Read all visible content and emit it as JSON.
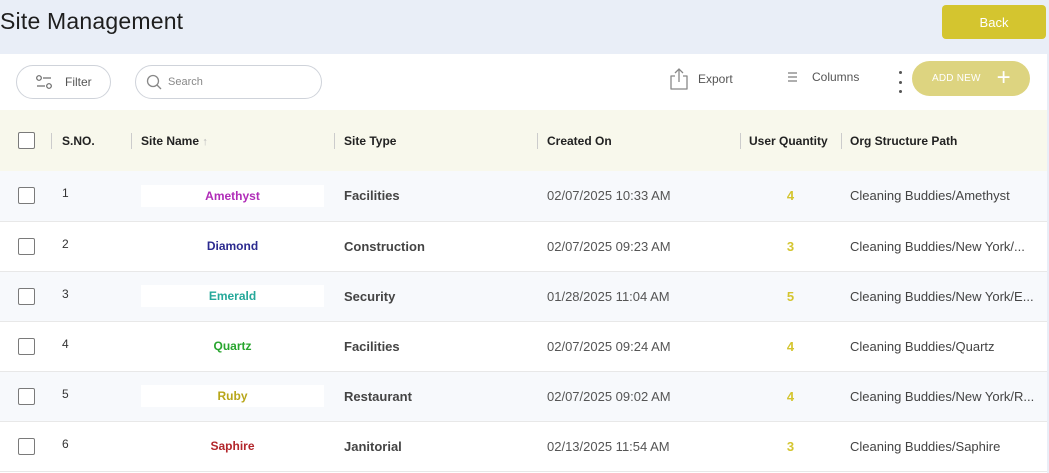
{
  "page": {
    "title": "Site Management",
    "back_label": "Back"
  },
  "toolbar": {
    "filter_label": "Filter",
    "search_placeholder": "Search",
    "export_label": "Export",
    "columns_label": "Columns",
    "add_new_label": "ADD NEW",
    "accent_color": "#d4c52f"
  },
  "table": {
    "headers": {
      "sno": "S.NO.",
      "site_name": "Site Name",
      "site_name_sort": "↑",
      "site_type": "Site Type",
      "created_on": "Created On",
      "user_quantity": "User Quantity",
      "org_path": "Org Structure Path"
    },
    "rows": [
      {
        "sno": "1",
        "site_name": "Amethyst",
        "site_color": "#b02cb8",
        "site_type": "Facilities",
        "created_on": "02/07/2025 10:33 AM",
        "user_quantity": "4",
        "org_path": "Cleaning Buddies/Amethyst"
      },
      {
        "sno": "2",
        "site_name": "Diamond",
        "site_color": "#2b2a8f",
        "site_type": "Construction",
        "created_on": "02/07/2025 09:23 AM",
        "user_quantity": "3",
        "org_path": "Cleaning Buddies/New York/..."
      },
      {
        "sno": "3",
        "site_name": "Emerald",
        "site_color": "#25a89a",
        "site_type": "Security",
        "created_on": "01/28/2025 11:04 AM",
        "user_quantity": "5",
        "org_path": "Cleaning Buddies/New York/E..."
      },
      {
        "sno": "4",
        "site_name": "Quartz",
        "site_color": "#28a52e",
        "site_type": "Facilities",
        "created_on": "02/07/2025 09:24 AM",
        "user_quantity": "4",
        "org_path": "Cleaning Buddies/Quartz"
      },
      {
        "sno": "5",
        "site_name": "Ruby",
        "site_color": "#b8a61a",
        "site_type": "Restaurant",
        "created_on": "02/07/2025 09:02 AM",
        "user_quantity": "4",
        "org_path": "Cleaning Buddies/New York/R..."
      },
      {
        "sno": "6",
        "site_name": "Saphire",
        "site_color": "#b2262b",
        "site_type": "Janitorial",
        "created_on": "02/13/2025 11:54 AM",
        "user_quantity": "3",
        "org_path": "Cleaning Buddies/Saphire"
      }
    ]
  }
}
